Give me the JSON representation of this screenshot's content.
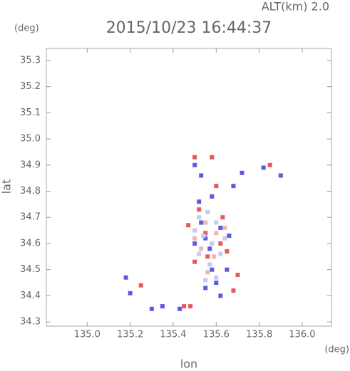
{
  "chart_data": {
    "type": "scatter",
    "title": "2015/10/23 16:44:37",
    "annotation": "ALT(km) 2.0",
    "y_unit": "(deg)",
    "x_unit": "(deg)",
    "xlabel": "lon",
    "ylabel": "lat",
    "xlim": [
      134.81,
      136.136
    ],
    "ylim": [
      34.284,
      35.346
    ],
    "xticks": [
      {
        "value": 135.0,
        "label": "135.0"
      },
      135.2,
      135.4,
      135.6,
      135.8,
      {
        "value": 136.0,
        "label": "136.0"
      }
    ],
    "yticks": [
      34.3,
      34.4,
      34.5,
      34.6,
      34.7,
      34.8,
      34.9,
      {
        "value": 35.0,
        "label": "35.0"
      },
      35.1,
      35.2,
      35.3
    ],
    "series": [
      {
        "color": "#e8575c",
        "x": [
          135.25,
          135.45,
          135.58,
          135.85,
          135.62,
          135.55,
          135.7,
          135.68,
          135.52,
          135.6,
          135.5,
          135.48,
          135.65,
          135.56,
          135.47,
          135.63,
          135.5
        ],
        "y": [
          34.44,
          34.36,
          34.93,
          34.9,
          34.6,
          34.64,
          34.48,
          34.42,
          34.73,
          34.82,
          34.93,
          34.36,
          34.57,
          34.55,
          34.67,
          34.7,
          34.53
        ]
      },
      {
        "color": "#5a5ae6",
        "x": [
          135.18,
          135.3,
          135.43,
          135.5,
          135.53,
          135.53,
          135.55,
          135.58,
          135.6,
          135.65,
          135.68,
          135.72,
          135.82,
          135.9,
          135.57,
          135.62,
          135.52,
          135.58,
          135.5,
          135.66,
          135.55,
          135.2,
          135.35,
          135.62
        ],
        "y": [
          34.47,
          34.35,
          34.35,
          34.9,
          34.86,
          34.68,
          34.62,
          34.5,
          34.45,
          34.5,
          34.82,
          34.87,
          34.89,
          34.86,
          34.58,
          34.66,
          34.76,
          34.78,
          34.6,
          34.63,
          34.43,
          34.41,
          34.36,
          34.4
        ]
      },
      {
        "color": "#c8c8f0",
        "x": [
          135.52,
          135.56,
          135.6,
          135.54,
          135.58,
          135.62,
          135.52,
          135.57,
          135.6,
          135.55,
          135.64,
          135.5
        ],
        "y": [
          34.7,
          34.72,
          34.68,
          34.63,
          34.6,
          34.56,
          34.56,
          34.52,
          34.47,
          34.46,
          34.62,
          34.65
        ]
      },
      {
        "color": "#f0b4b4",
        "x": [
          135.55,
          135.6,
          135.53,
          135.59,
          135.56,
          135.64,
          135.5
        ],
        "y": [
          34.68,
          34.64,
          34.58,
          34.55,
          34.49,
          34.66,
          34.62
        ]
      }
    ]
  }
}
